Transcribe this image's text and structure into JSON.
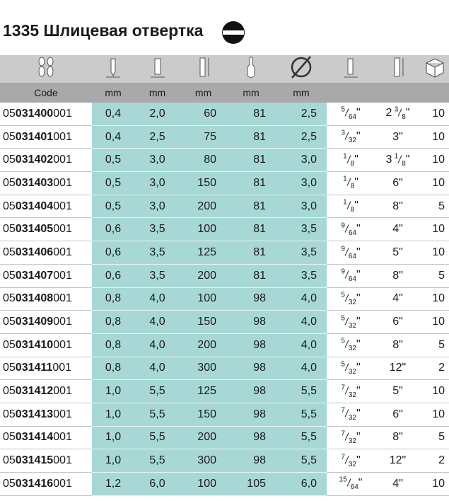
{
  "title": "1335 Шлицевая отвертка",
  "units": [
    "Code",
    "mm",
    "mm",
    "mm",
    "mm",
    "mm"
  ],
  "rows": [
    [
      {
        "prefix": "05",
        "main": "031400",
        "suffix": "001"
      },
      "0,4",
      "2,0",
      "60",
      "81",
      "2,5",
      {
        "num": "5",
        "den": "64",
        "unit": "\""
      },
      {
        "whole": "2",
        "num": "3",
        "den": "8",
        "unit": "\""
      },
      "10"
    ],
    [
      {
        "prefix": "05",
        "main": "031401",
        "suffix": "001"
      },
      "0,4",
      "2,5",
      "75",
      "81",
      "2,5",
      {
        "num": "3",
        "den": "32",
        "unit": "\""
      },
      {
        "whole": "3",
        "unit": "\""
      },
      "10"
    ],
    [
      {
        "prefix": "05",
        "main": "031402",
        "suffix": "001"
      },
      "0,5",
      "3,0",
      "80",
      "81",
      "3,0",
      {
        "num": "1",
        "den": "8",
        "unit": "\""
      },
      {
        "whole": "3",
        "num": "1",
        "den": "8",
        "unit": "\""
      },
      "10"
    ],
    [
      {
        "prefix": "05",
        "main": "031403",
        "suffix": "001"
      },
      "0,5",
      "3,0",
      "150",
      "81",
      "3,0",
      {
        "num": "1",
        "den": "8",
        "unit": "\""
      },
      {
        "whole": "6",
        "unit": "\""
      },
      "10"
    ],
    [
      {
        "prefix": "05",
        "main": "031404",
        "suffix": "001"
      },
      "0,5",
      "3,0",
      "200",
      "81",
      "3,0",
      {
        "num": "1",
        "den": "8",
        "unit": "\""
      },
      {
        "whole": "8",
        "unit": "\""
      },
      "5"
    ],
    [
      {
        "prefix": "05",
        "main": "031405",
        "suffix": "001"
      },
      "0,6",
      "3,5",
      "100",
      "81",
      "3,5",
      {
        "num": "9",
        "den": "64",
        "unit": "\""
      },
      {
        "whole": "4",
        "unit": "\""
      },
      "10"
    ],
    [
      {
        "prefix": "05",
        "main": "031406",
        "suffix": "001"
      },
      "0,6",
      "3,5",
      "125",
      "81",
      "3,5",
      {
        "num": "9",
        "den": "64",
        "unit": "\""
      },
      {
        "whole": "5",
        "unit": "\""
      },
      "10"
    ],
    [
      {
        "prefix": "05",
        "main": "031407",
        "suffix": "001"
      },
      "0,6",
      "3,5",
      "200",
      "81",
      "3,5",
      {
        "num": "9",
        "den": "64",
        "unit": "\""
      },
      {
        "whole": "8",
        "unit": "\""
      },
      "5"
    ],
    [
      {
        "prefix": "05",
        "main": "031408",
        "suffix": "001"
      },
      "0,8",
      "4,0",
      "100",
      "98",
      "4,0",
      {
        "num": "5",
        "den": "32",
        "unit": "\""
      },
      {
        "whole": "4",
        "unit": "\""
      },
      "10"
    ],
    [
      {
        "prefix": "05",
        "main": "031409",
        "suffix": "001"
      },
      "0,8",
      "4,0",
      "150",
      "98",
      "4,0",
      {
        "num": "5",
        "den": "32",
        "unit": "\""
      },
      {
        "whole": "6",
        "unit": "\""
      },
      "10"
    ],
    [
      {
        "prefix": "05",
        "main": "031410",
        "suffix": "001"
      },
      "0,8",
      "4,0",
      "200",
      "98",
      "4,0",
      {
        "num": "5",
        "den": "32",
        "unit": "\""
      },
      {
        "whole": "8",
        "unit": "\""
      },
      "5"
    ],
    [
      {
        "prefix": "05",
        "main": "031411",
        "suffix": "001"
      },
      "0,8",
      "4,0",
      "300",
      "98",
      "4,0",
      {
        "num": "5",
        "den": "32",
        "unit": "\""
      },
      {
        "whole": "12",
        "unit": "\""
      },
      "2"
    ],
    [
      {
        "prefix": "05",
        "main": "031412",
        "suffix": "001"
      },
      "1,0",
      "5,5",
      "125",
      "98",
      "5,5",
      {
        "num": "7",
        "den": "32",
        "unit": "\""
      },
      {
        "whole": "5",
        "unit": "\""
      },
      "10"
    ],
    [
      {
        "prefix": "05",
        "main": "031413",
        "suffix": "001"
      },
      "1,0",
      "5,5",
      "150",
      "98",
      "5,5",
      {
        "num": "7",
        "den": "32",
        "unit": "\""
      },
      {
        "whole": "6",
        "unit": "\""
      },
      "10"
    ],
    [
      {
        "prefix": "05",
        "main": "031414",
        "suffix": "001"
      },
      "1,0",
      "5,5",
      "200",
      "98",
      "5,5",
      {
        "num": "7",
        "den": "32",
        "unit": "\""
      },
      {
        "whole": "8",
        "unit": "\""
      },
      "5"
    ],
    [
      {
        "prefix": "05",
        "main": "031415",
        "suffix": "001"
      },
      "1,0",
      "5,5",
      "300",
      "98",
      "5,5",
      {
        "num": "7",
        "den": "32",
        "unit": "\""
      },
      {
        "whole": "12",
        "unit": "\""
      },
      "2"
    ],
    [
      {
        "prefix": "05",
        "main": "031416",
        "suffix": "001"
      },
      "1,2",
      "6,0",
      "100",
      "105",
      "6,0",
      {
        "num": "15",
        "den": "64",
        "unit": "\""
      },
      {
        "whole": "4",
        "unit": "\""
      },
      "10"
    ]
  ]
}
